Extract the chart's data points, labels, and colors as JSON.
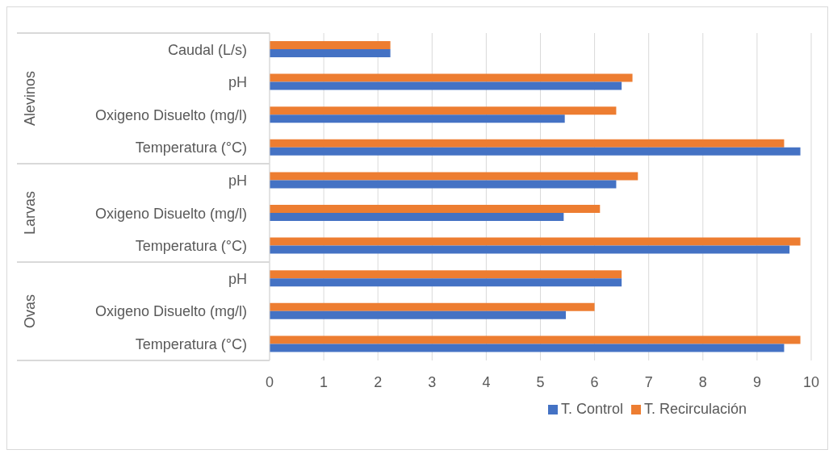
{
  "chart_data": {
    "type": "bar",
    "orientation": "horizontal",
    "categories": [
      "Caudal (L/s)",
      "pH",
      "Oxigeno Disuelto (mg/l)",
      "Temperatura (°C)",
      "pH",
      "Oxigeno Disuelto (mg/l)",
      "Temperatura (°C)",
      "pH",
      "Oxigeno Disuelto (mg/l)",
      "Temperatura (°C)"
    ],
    "series": [
      {
        "name": "T. Recirculación",
        "color": "#ed7d31",
        "values": [
          2.23,
          6.7,
          6.4,
          9.5,
          6.8,
          6.1,
          9.8,
          6.5,
          6.0,
          9.8
        ]
      },
      {
        "name": "T. Control",
        "color": "#4472c4",
        "values": [
          2.23,
          6.5,
          5.45,
          9.8,
          6.4,
          5.43,
          9.6,
          6.5,
          5.47,
          9.5
        ]
      }
    ],
    "xlim": [
      0,
      10
    ],
    "xticks": [
      0,
      1,
      2,
      3,
      4,
      5,
      6,
      7,
      8,
      9,
      10
    ],
    "grid": "x",
    "legend": "bottom",
    "annotations": [
      "Alevinos",
      "Larvas",
      "Ovas"
    ]
  }
}
